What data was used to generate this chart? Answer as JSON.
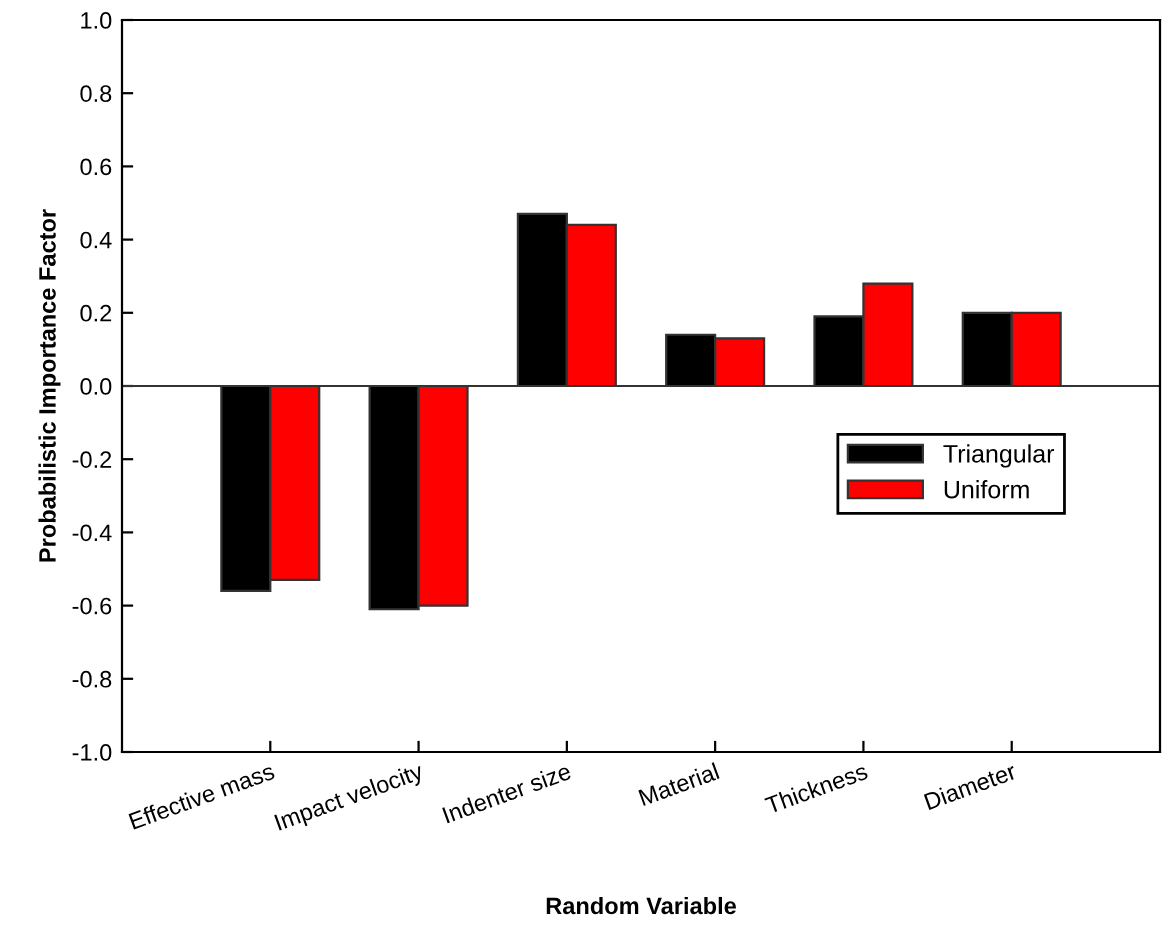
{
  "chart_data": {
    "type": "bar",
    "xlabel": "Random Variable",
    "ylabel": "Probabilistic Importance Factor",
    "categories": [
      "Effective mass",
      "Impact velocity",
      "Indenter size",
      "Material",
      "Thickness",
      "Diameter"
    ],
    "series": [
      {
        "name": "Triangular",
        "color": "#000000",
        "values": [
          -0.56,
          -0.61,
          0.47,
          0.14,
          0.19,
          0.2
        ]
      },
      {
        "name": "Uniform",
        "color": "#ff0000",
        "values": [
          -0.53,
          -0.6,
          0.44,
          0.13,
          0.28,
          0.2
        ]
      }
    ],
    "ylim": [
      -1.0,
      1.0
    ],
    "yticks": [
      {
        "value": -1.0,
        "label": "-1.0"
      },
      {
        "value": -0.8,
        "label": "-0.8"
      },
      {
        "value": -0.6,
        "label": "-0.6"
      },
      {
        "value": -0.4,
        "label": "-0.4"
      },
      {
        "value": -0.2,
        "label": "-0.2"
      },
      {
        "value": 0.0,
        "label": "0.0"
      },
      {
        "value": 0.2,
        "label": "0.2"
      },
      {
        "value": 0.4,
        "label": "0.4"
      },
      {
        "value": 0.6,
        "label": "0.6"
      },
      {
        "value": 0.8,
        "label": "0.8"
      },
      {
        "value": 1.0,
        "label": "1.0"
      }
    ],
    "ref_lines": [
      {
        "axis": "y",
        "value": 0,
        "color": "#333333"
      }
    ],
    "grid": false,
    "legend": "right"
  }
}
